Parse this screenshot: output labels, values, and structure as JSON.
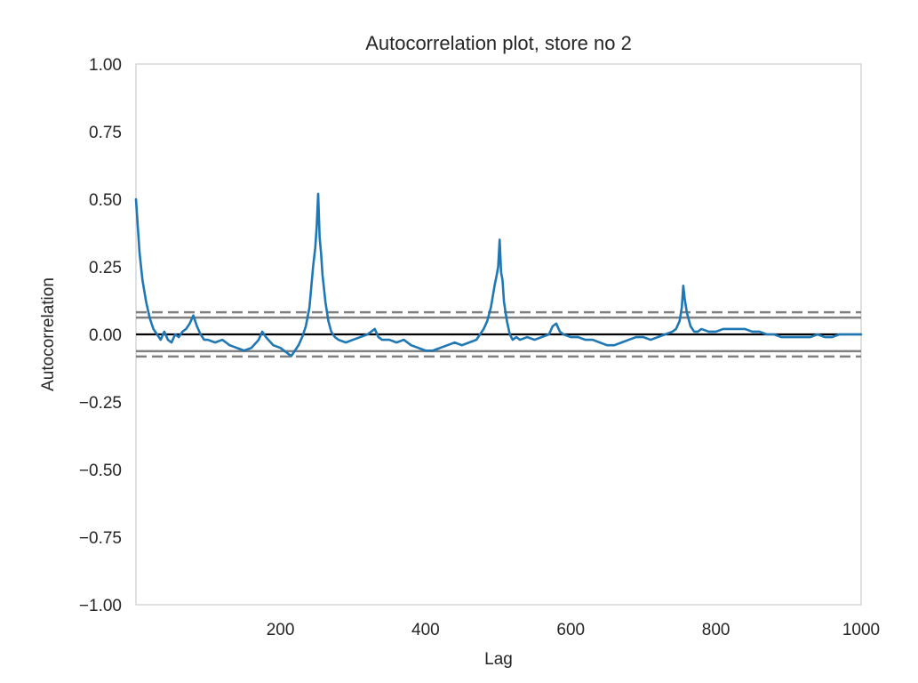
{
  "chart_data": {
    "type": "line",
    "title": "Autocorrelation plot, store no 2",
    "xlabel": "Lag",
    "ylabel": "Autocorrelation",
    "xlim": [
      1,
      1000
    ],
    "ylim": [
      -1.0,
      1.0
    ],
    "x_ticks": [
      200,
      400,
      600,
      800,
      1000
    ],
    "x_tick_labels": [
      "200",
      "400",
      "600",
      "800",
      "1000"
    ],
    "y_ticks": [
      -1.0,
      -0.75,
      -0.5,
      -0.25,
      0.0,
      0.25,
      0.5,
      0.75,
      1.0
    ],
    "y_tick_labels": [
      "−1.00",
      "−0.75",
      "−0.50",
      "−0.25",
      "0.00",
      "0.25",
      "0.50",
      "0.75",
      "1.00"
    ],
    "grid": false,
    "legend": "none",
    "colors": {
      "series": "#1f77b4",
      "confidence_lines": "#808080",
      "zero_line": "#000000",
      "frame": "#cccccc"
    },
    "reference_lines": {
      "zero": 0.0,
      "ci95": 0.062,
      "ci99": 0.082
    },
    "series": [
      {
        "x": [
          1,
          3,
          6,
          10,
          15,
          20,
          25,
          30,
          35,
          40,
          45,
          50,
          55,
          60,
          65,
          70,
          75,
          80,
          85,
          90,
          95,
          100,
          110,
          120,
          130,
          140,
          150,
          160,
          170,
          175,
          180,
          190,
          200,
          210,
          215,
          220,
          225,
          230,
          235,
          240,
          245,
          248,
          250,
          252,
          254,
          256,
          258,
          262,
          266,
          270,
          275,
          280,
          290,
          300,
          310,
          320,
          330,
          335,
          340,
          350,
          360,
          370,
          380,
          390,
          400,
          410,
          420,
          430,
          440,
          450,
          460,
          470,
          475,
          480,
          485,
          490,
          495,
          498,
          500,
          502,
          504,
          506,
          508,
          512,
          516,
          520,
          525,
          530,
          540,
          550,
          560,
          570,
          575,
          580,
          585,
          590,
          600,
          610,
          620,
          630,
          640,
          650,
          660,
          670,
          680,
          690,
          700,
          710,
          720,
          730,
          740,
          745,
          750,
          753,
          755,
          757,
          760,
          765,
          770,
          775,
          780,
          790,
          800,
          810,
          820,
          830,
          840,
          850,
          860,
          870,
          880,
          890,
          900,
          910,
          920,
          930,
          940,
          950,
          960,
          970,
          980,
          990,
          1000
        ],
        "y": [
          0.5,
          0.42,
          0.3,
          0.2,
          0.12,
          0.06,
          0.02,
          0.0,
          -0.02,
          0.01,
          -0.02,
          -0.03,
          0.0,
          -0.01,
          0.01,
          0.02,
          0.04,
          0.07,
          0.03,
          0.0,
          -0.02,
          -0.02,
          -0.03,
          -0.02,
          -0.04,
          -0.05,
          -0.06,
          -0.05,
          -0.02,
          0.01,
          -0.01,
          -0.04,
          -0.05,
          -0.07,
          -0.08,
          -0.06,
          -0.04,
          -0.01,
          0.03,
          0.1,
          0.25,
          0.32,
          0.4,
          0.52,
          0.36,
          0.3,
          0.22,
          0.12,
          0.05,
          0.01,
          -0.01,
          -0.02,
          -0.03,
          -0.02,
          -0.01,
          0.0,
          0.02,
          -0.01,
          -0.02,
          -0.02,
          -0.03,
          -0.02,
          -0.04,
          -0.05,
          -0.06,
          -0.06,
          -0.05,
          -0.04,
          -0.03,
          -0.04,
          -0.03,
          -0.02,
          0.0,
          0.02,
          0.05,
          0.1,
          0.18,
          0.22,
          0.25,
          0.35,
          0.23,
          0.2,
          0.12,
          0.05,
          0.0,
          -0.02,
          -0.01,
          -0.02,
          -0.01,
          -0.02,
          -0.01,
          0.0,
          0.03,
          0.04,
          0.01,
          0.0,
          -0.01,
          -0.01,
          -0.02,
          -0.02,
          -0.03,
          -0.04,
          -0.04,
          -0.03,
          -0.02,
          -0.01,
          -0.01,
          -0.02,
          -0.01,
          0.0,
          0.01,
          0.02,
          0.05,
          0.1,
          0.18,
          0.13,
          0.08,
          0.03,
          0.01,
          0.01,
          0.02,
          0.01,
          0.01,
          0.02,
          0.02,
          0.02,
          0.02,
          0.01,
          0.01,
          0.0,
          0.0,
          -0.01,
          -0.01,
          -0.01,
          -0.01,
          -0.01,
          0.0,
          -0.01,
          -0.01,
          0.0,
          0.0,
          0.0,
          0.0
        ]
      }
    ]
  }
}
